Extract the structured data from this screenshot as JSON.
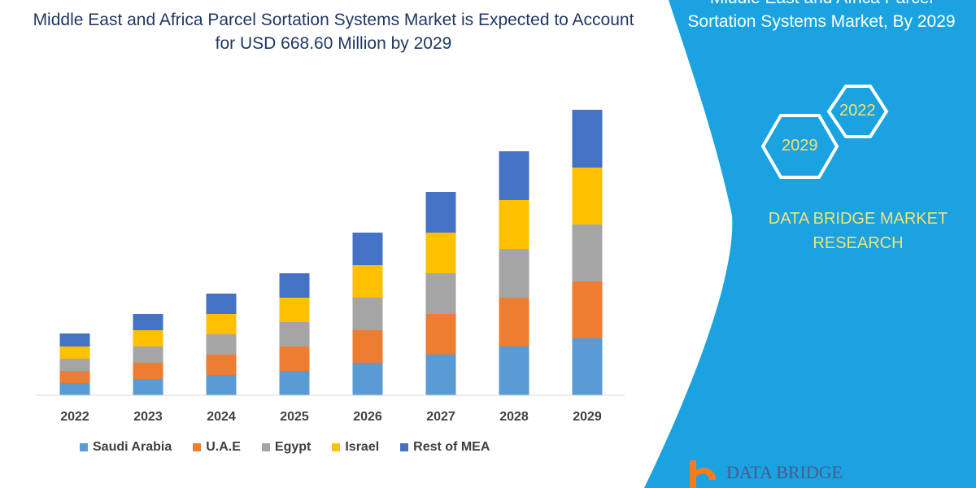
{
  "title": "Middle East and Africa Parcel Sortation Systems Market is Expected to Account for USD 668.60 Million by 2029",
  "side_panel": {
    "title_line1": "Middle East and Africa Parcel",
    "title_line2": "Sortation Systems Market, By 2029",
    "hex_years": [
      "2022",
      "2029"
    ],
    "brand_line1": "DATA BRIDGE MARKET",
    "brand_line2": "RESEARCH",
    "logo_text": "DATA BRIDGE",
    "panel_color": "#1aa3e0"
  },
  "chart_data": {
    "type": "bar",
    "stacked": true,
    "categories": [
      "2022",
      "2023",
      "2024",
      "2025",
      "2026",
      "2027",
      "2028",
      "2029"
    ],
    "series": [
      {
        "name": "Saudi Arabia",
        "color": "#5b9bd5",
        "values": [
          15,
          20,
          25,
          30,
          40,
          50,
          60,
          70
        ]
      },
      {
        "name": "U.A.E",
        "color": "#ed7d31",
        "values": [
          15,
          20,
          25,
          30,
          40,
          50,
          60,
          70
        ]
      },
      {
        "name": "Egypt",
        "color": "#a5a5a5",
        "values": [
          15,
          20,
          25,
          30,
          40,
          50,
          60,
          70
        ]
      },
      {
        "name": "Israel",
        "color": "#ffc000",
        "values": [
          15,
          20,
          25,
          30,
          40,
          50,
          60,
          70
        ]
      },
      {
        "name": "Rest of MEA",
        "color": "#4472c4",
        "values": [
          16,
          20,
          25,
          30,
          40,
          50,
          60,
          71
        ]
      }
    ],
    "y_axis_shown": false,
    "grid": false,
    "legend_position": "bottom"
  }
}
